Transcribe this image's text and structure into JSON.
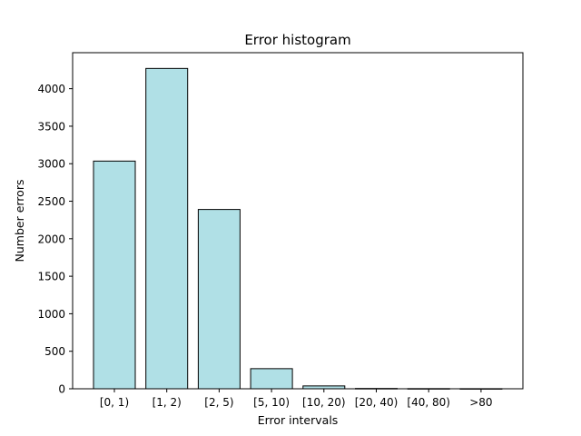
{
  "chart_data": {
    "type": "bar",
    "title": "Error histogram",
    "xlabel": "Error intervals",
    "ylabel": "Number errors",
    "categories": [
      "[0, 1)",
      "[1, 2)",
      "[2, 5)",
      "[5, 10)",
      "[10, 20)",
      "[20, 40)",
      "[40, 80)",
      ">80"
    ],
    "values": [
      3035,
      4270,
      2390,
      268,
      38,
      4,
      2,
      1
    ],
    "ylim": [
      0,
      4480
    ],
    "yticks": [
      0,
      500,
      1000,
      1500,
      2000,
      2500,
      3000,
      3500,
      4000
    ],
    "grid": false,
    "bar_color": "#b0e0e6",
    "edge_color": "#000000"
  }
}
